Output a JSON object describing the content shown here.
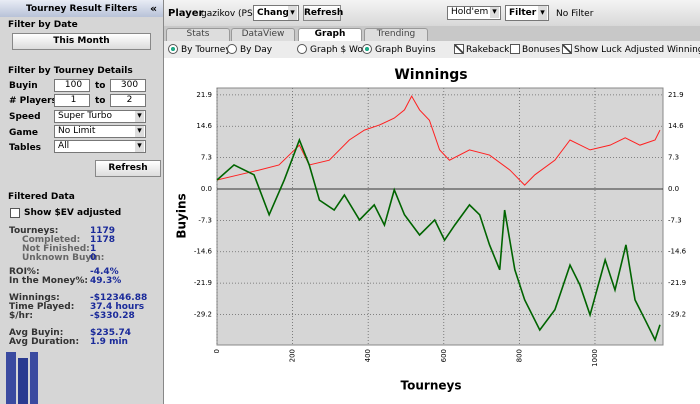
{
  "sidebar": {
    "title": "Tourney Result Filters",
    "collapse": "«",
    "date_heading": "Filter by Date",
    "date_button": "This Month",
    "details_heading": "Filter by Tourney Details",
    "buyin": {
      "label": "Buyin",
      "from": "100",
      "to_label": "to",
      "to": "300"
    },
    "players": {
      "label": "# Players",
      "from": "1",
      "to_label": "to",
      "to": "2"
    },
    "speed": {
      "label": "Speed",
      "value": "Super Turbo"
    },
    "game": {
      "label": "Game",
      "value": "No Limit"
    },
    "tables": {
      "label": "Tables",
      "value": "All"
    },
    "refresh": "Refresh",
    "filtered_heading": "Filtered Data",
    "ev_checkbox": "Show $EV adjusted",
    "stats": [
      [
        "Tourneys:",
        "1179"
      ],
      [
        "Completed:",
        "1178"
      ],
      [
        "Not Finished:",
        "1"
      ],
      [
        "Unknown Buyin:",
        "0"
      ],
      [
        "ROI%:",
        "-4.4%"
      ],
      [
        "In the Money%:",
        "49.3%"
      ],
      [
        "Winnings:",
        "-$12346.88"
      ],
      [
        "Time Played:",
        "37.4 hours"
      ],
      [
        "$/hr:",
        "-$330.28"
      ],
      [
        "Avg Buyin:",
        "$235.74"
      ],
      [
        "Avg Duration:",
        "1.9 min"
      ]
    ]
  },
  "toolbar": {
    "player_label": "Player",
    "player": "gazikov (PS)",
    "change": "Change",
    "refresh": "Refresh",
    "game": "Hold'em",
    "filter": "Filter",
    "filter_status": "No Filter"
  },
  "tabs": [
    "Stats",
    "DataView",
    "Graph",
    "Trending"
  ],
  "options": {
    "radios": [
      "By Tourney",
      "By Day",
      "Graph $ Won",
      "Graph Buyins"
    ],
    "checkboxes": [
      "Rakeback",
      "Bonuses",
      "Show Luck Adjusted Winnings"
    ]
  },
  "chart_data": {
    "type": "line",
    "title": "Winnings",
    "x_label": "Tourneys",
    "y_label": "Buyins",
    "xlim": [
      0,
      1180
    ],
    "xticks": [
      0,
      200,
      400,
      600,
      800,
      1000
    ],
    "ylim": [
      -36.3,
      23.5
    ],
    "yticks": [
      21.9,
      14.6,
      7.3,
      {
        "value": 0,
        "label": "0.0"
      },
      -7.3,
      -14.6,
      -21.9,
      -29.2
    ],
    "grid": true,
    "series": [
      {
        "color": "#ff2020",
        "x": [
          0,
          58,
          111,
          164,
          204,
          218,
          244,
          297,
          350,
          390,
          430,
          469,
          496,
          515,
          536,
          562,
          589,
          615,
          668,
          721,
          775,
          814,
          841,
          894,
          934,
          987,
          1040,
          1080,
          1119,
          1159,
          1172
        ],
        "values": [
          2.1,
          3.3,
          4.4,
          5.6,
          9,
          10.2,
          5.6,
          6.7,
          11.4,
          13.7,
          14.9,
          16.5,
          18.4,
          21.6,
          18.4,
          16,
          9.1,
          6.7,
          9.1,
          7.9,
          4.4,
          0.9,
          3.3,
          6.7,
          11.4,
          9.1,
          10.2,
          11.9,
          10.2,
          11.4,
          13.7
        ]
      },
      {
        "color": "#006400",
        "x": [
          0,
          45,
          98,
          138,
          178,
          218,
          244,
          271,
          310,
          337,
          377,
          416,
          443,
          469,
          496,
          536,
          576,
          602,
          629,
          668,
          695,
          721,
          748,
          761,
          788,
          814,
          854,
          894,
          934,
          960,
          987,
          1027,
          1053,
          1082,
          1106,
          1133,
          1159,
          1172
        ],
        "values": [
          2.1,
          5.6,
          3.3,
          -6,
          2.1,
          11.4,
          5.6,
          -2.6,
          -4.9,
          -1.4,
          -7.2,
          -3.7,
          -8.4,
          -0.2,
          -6,
          -10.7,
          -7.2,
          -11.9,
          -8.4,
          -3.7,
          -6,
          -13,
          -18.8,
          -4.9,
          -18.8,
          -25.8,
          -32.8,
          -28.1,
          -17.7,
          -22.3,
          -29.3,
          -16.5,
          -23.5,
          -13,
          -25.8,
          -30.5,
          -35.1,
          -31.6
        ]
      }
    ]
  }
}
